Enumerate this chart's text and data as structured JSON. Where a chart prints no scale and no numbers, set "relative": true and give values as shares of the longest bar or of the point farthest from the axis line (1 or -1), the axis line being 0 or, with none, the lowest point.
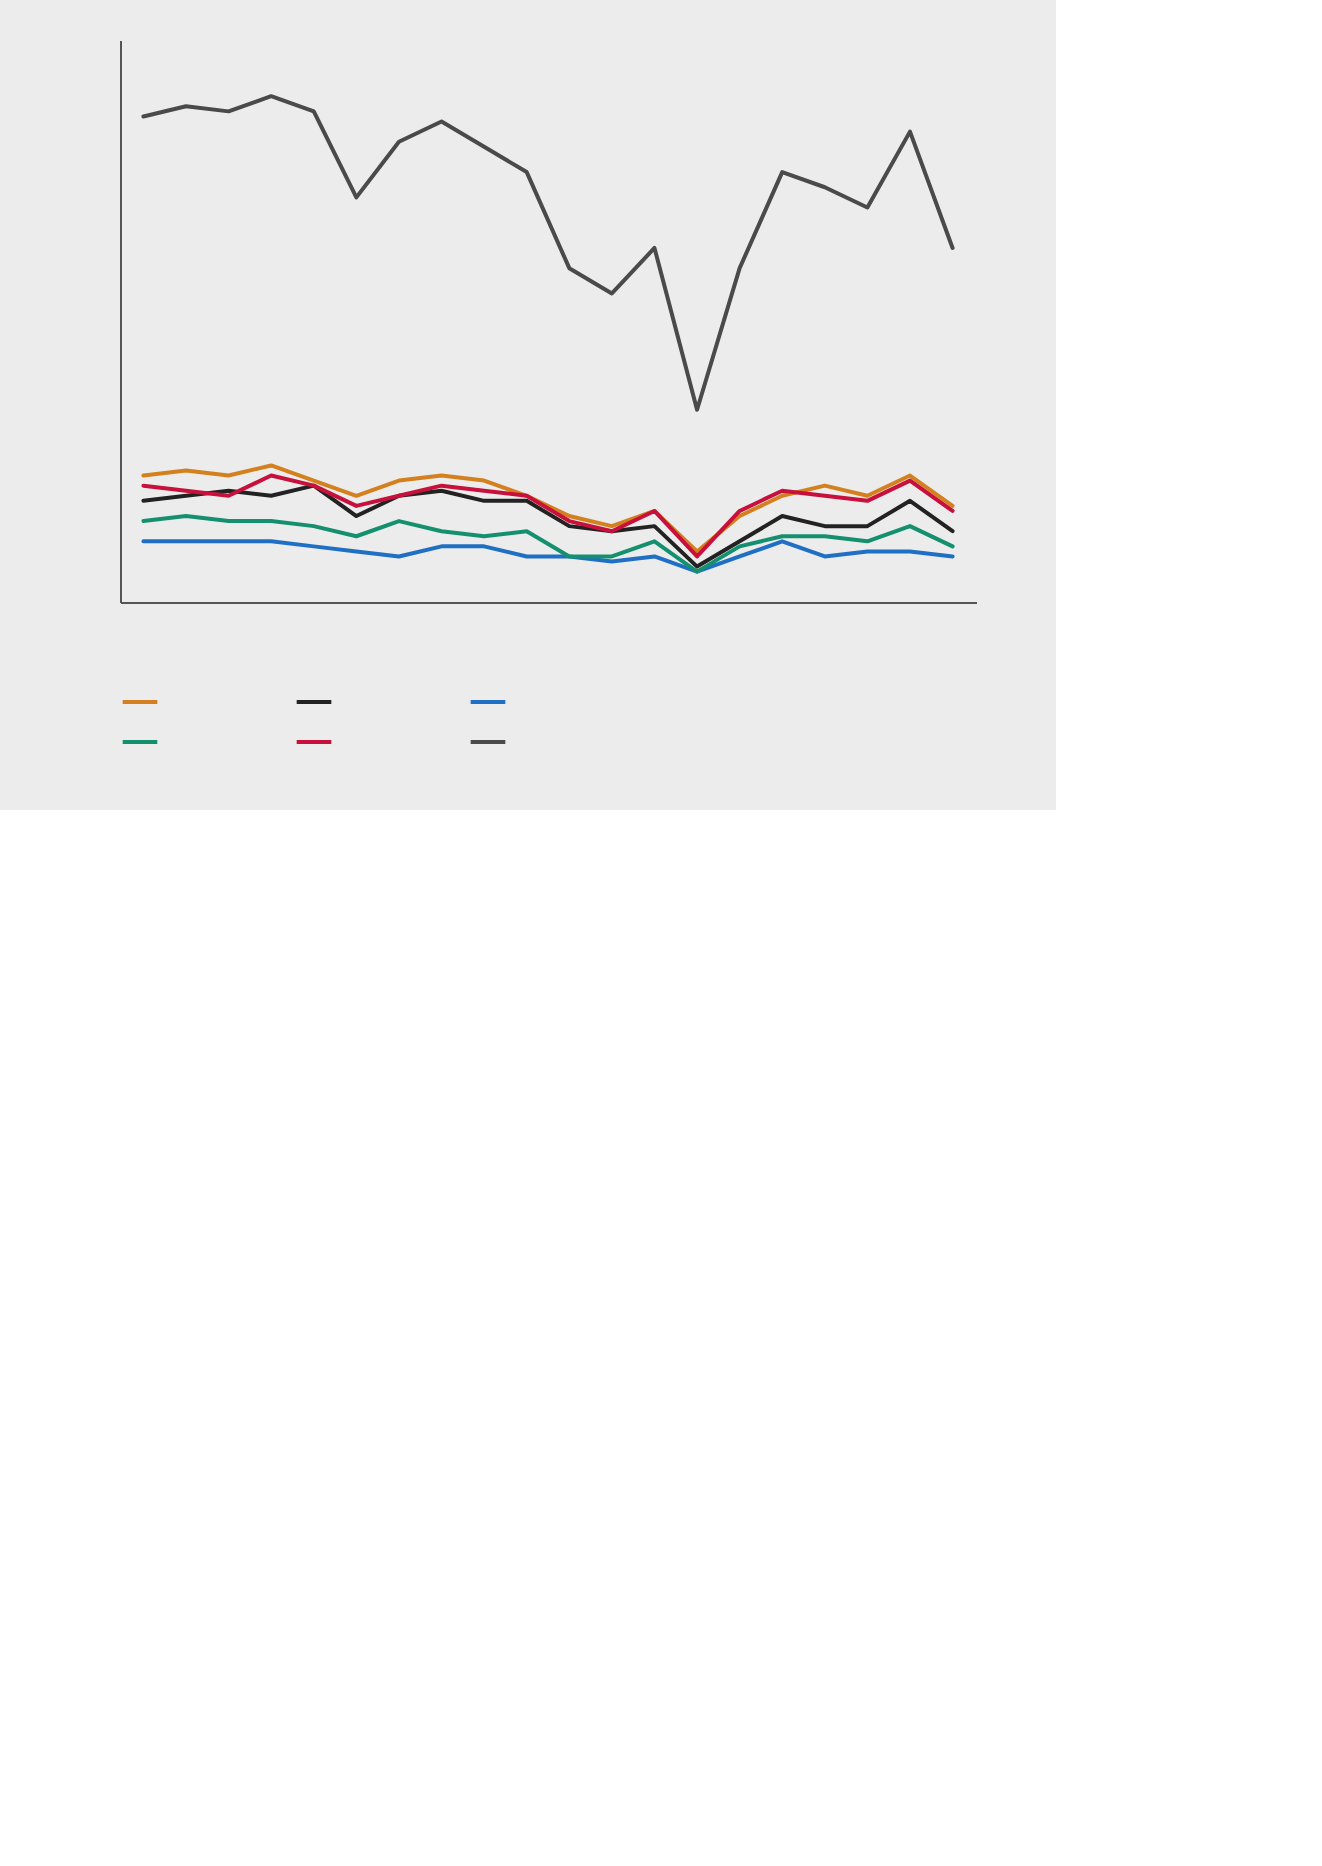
{
  "chart_data": {
    "type": "line",
    "relative": true,
    "categories": [
      null,
      null,
      null,
      null,
      null,
      null,
      null,
      null,
      null,
      null,
      null,
      null,
      null,
      null,
      null,
      null,
      null,
      null,
      null,
      null
    ],
    "grid": false,
    "marker": "none",
    "line_style": "solid",
    "series": [
      {
        "color": "#d4801f",
        "values": [
          0.25,
          0.26,
          0.25,
          0.27,
          0.24,
          0.21,
          0.24,
          0.25,
          0.24,
          0.21,
          0.17,
          0.15,
          0.18,
          0.1,
          0.17,
          0.21,
          0.23,
          0.21,
          0.25,
          0.19
        ]
      },
      {
        "color": "#222222",
        "values": [
          0.2,
          0.21,
          0.22,
          0.21,
          0.23,
          0.17,
          0.21,
          0.22,
          0.2,
          0.2,
          0.15,
          0.14,
          0.15,
          0.07,
          0.12,
          0.17,
          0.15,
          0.15,
          0.2,
          0.14
        ]
      },
      {
        "color": "#1f6fc4",
        "values": [
          0.12,
          0.12,
          0.12,
          0.12,
          0.11,
          0.1,
          0.09,
          0.11,
          0.11,
          0.09,
          0.09,
          0.08,
          0.09,
          0.06,
          0.09,
          0.12,
          0.09,
          0.1,
          0.1,
          0.09
        ]
      },
      {
        "color": "#14906f",
        "values": [
          0.16,
          0.17,
          0.16,
          0.16,
          0.15,
          0.13,
          0.16,
          0.14,
          0.13,
          0.14,
          0.09,
          0.09,
          0.12,
          0.06,
          0.11,
          0.13,
          0.13,
          0.12,
          0.15,
          0.11
        ]
      },
      {
        "color": "#c8103c",
        "values": [
          0.23,
          0.22,
          0.21,
          0.25,
          0.23,
          0.19,
          0.21,
          0.23,
          0.22,
          0.21,
          0.16,
          0.14,
          0.18,
          0.09,
          0.18,
          0.22,
          0.21,
          0.2,
          0.24,
          0.18
        ]
      },
      {
        "color": "#4a4a4a",
        "values": [
          0.96,
          0.98,
          0.97,
          1.0,
          0.97,
          0.8,
          0.91,
          0.95,
          0.9,
          0.85,
          0.66,
          0.61,
          0.7,
          0.38,
          0.66,
          0.85,
          0.82,
          0.78,
          0.93,
          0.7
        ]
      }
    ]
  }
}
